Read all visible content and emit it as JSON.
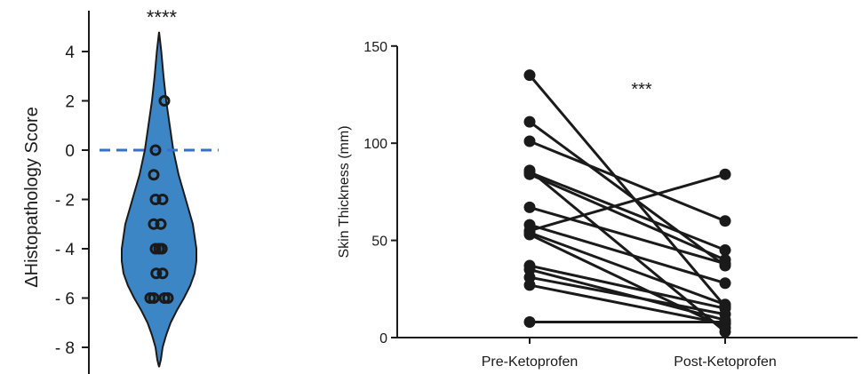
{
  "chart_data": [
    {
      "type": "violin",
      "significance": "****",
      "ylabel": "ΔHistopathology Score",
      "yticks": [
        "4",
        "2",
        "0",
        "- 2",
        "- 4",
        "- 6",
        "- 8"
      ],
      "ytick_values": [
        4,
        2,
        0,
        -2,
        -4,
        -6,
        -8
      ],
      "ylim": [
        -9,
        5.5
      ],
      "violin_range": [
        -8.8,
        4.8
      ],
      "reference_line": 0,
      "points": [
        {
          "x": 0.15,
          "y": 2
        },
        {
          "x": -0.1,
          "y": 0
        },
        {
          "x": -0.15,
          "y": -1
        },
        {
          "x": -0.1,
          "y": -2
        },
        {
          "x": 0.1,
          "y": -2
        },
        {
          "x": -0.15,
          "y": -3
        },
        {
          "x": 0.05,
          "y": -3
        },
        {
          "x": -0.1,
          "y": -4
        },
        {
          "x": 0.0,
          "y": -4
        },
        {
          "x": 0.08,
          "y": -4
        },
        {
          "x": -0.08,
          "y": -5
        },
        {
          "x": 0.1,
          "y": -5
        },
        {
          "x": -0.25,
          "y": -6
        },
        {
          "x": -0.15,
          "y": -6
        },
        {
          "x": 0.15,
          "y": -6
        },
        {
          "x": 0.25,
          "y": -6
        }
      ],
      "colors": {
        "violin_fill": "#3d86c6",
        "reference_line": "#3a6fc8",
        "points": "#1a1a1a"
      }
    },
    {
      "type": "paired-line",
      "significance": "***",
      "ylabel": "Skin Thickness (mm)",
      "xlabel": "",
      "categories": [
        "Pre-Ketoprofen",
        "Post-Ketoprofen"
      ],
      "yticks": [
        "0",
        "50",
        "100",
        "150"
      ],
      "ytick_values": [
        0,
        50,
        100,
        150
      ],
      "ylim": [
        0,
        150
      ],
      "pairs": [
        {
          "pre": 135,
          "post": 16
        },
        {
          "pre": 111,
          "post": 37
        },
        {
          "pre": 101,
          "post": 60
        },
        {
          "pre": 86,
          "post": 3
        },
        {
          "pre": 85,
          "post": 45
        },
        {
          "pre": 84,
          "post": 40
        },
        {
          "pre": 67,
          "post": 38
        },
        {
          "pre": 58,
          "post": 28
        },
        {
          "pre": 55,
          "post": 84
        },
        {
          "pre": 54,
          "post": 17
        },
        {
          "pre": 53,
          "post": 5
        },
        {
          "pre": 37,
          "post": 15
        },
        {
          "pre": 35,
          "post": 9
        },
        {
          "pre": 31,
          "post": 12
        },
        {
          "pre": 27,
          "post": 7
        },
        {
          "pre": 8,
          "post": 8
        }
      ],
      "colors": {
        "lines": "#1a1a1a",
        "points": "#1a1a1a"
      }
    }
  ]
}
